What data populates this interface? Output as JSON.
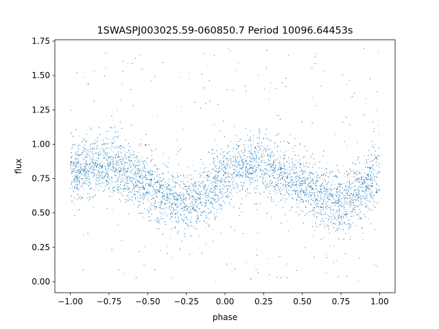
{
  "chart_data": {
    "type": "scatter",
    "title": "1SWASPJ003025.59-060850.7 Period 10096.64453s",
    "xlabel": "phase",
    "ylabel": "flux",
    "xlim": [
      -1.1,
      1.1
    ],
    "ylim": [
      -0.08,
      1.76
    ],
    "xticks": [
      -1.0,
      -0.75,
      -0.5,
      -0.25,
      0.0,
      0.25,
      0.5,
      0.75,
      1.0
    ],
    "xtick_labels": [
      "−1.00",
      "−0.75",
      "−0.50",
      "−0.25",
      "0.00",
      "0.25",
      "0.50",
      "0.75",
      "1.00"
    ],
    "yticks": [
      0.0,
      0.25,
      0.5,
      0.75,
      1.0,
      1.25,
      1.5,
      1.75
    ],
    "ytick_labels": [
      "0.00",
      "0.25",
      "0.50",
      "0.75",
      "1.00",
      "1.25",
      "1.50",
      "1.75"
    ],
    "grid": false,
    "legend": "none",
    "color": "#1f77b4",
    "series": [
      {
        "values_description_x": [
          "−1.00",
          "−0.75",
          "−0.50",
          "−0.25",
          "0.00",
          "0.25",
          "0.50",
          "0.75",
          "1.00"
        ],
        "x": [
          -1.0,
          -0.9,
          -0.8,
          -0.7,
          -0.6,
          -0.5,
          -0.4,
          -0.3,
          -0.25,
          -0.2,
          -0.1,
          0.0,
          0.1,
          0.2,
          0.3,
          0.4,
          0.5,
          0.6,
          0.7,
          0.75,
          0.8,
          0.9,
          1.0
        ],
        "y": [
          0.77,
          0.83,
          0.86,
          0.84,
          0.77,
          0.7,
          0.63,
          0.58,
          0.57,
          0.59,
          0.67,
          0.77,
          0.83,
          0.86,
          0.84,
          0.77,
          0.7,
          0.63,
          0.58,
          0.57,
          0.59,
          0.67,
          0.77
        ]
      }
    ]
  }
}
